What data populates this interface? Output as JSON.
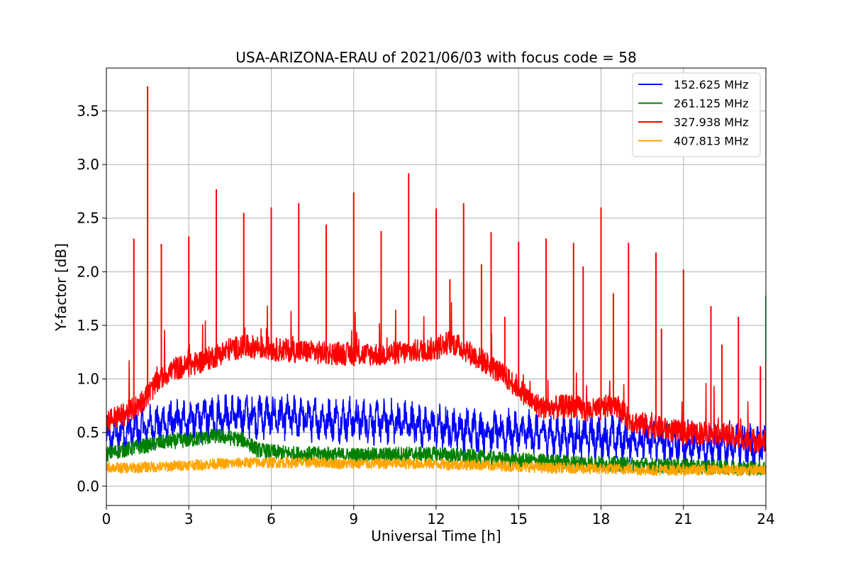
{
  "chart_data": {
    "type": "line",
    "title": "USA-ARIZONA-ERAU of 2021/06/03 with focus code = 58",
    "xlabel": "Universal Time [h]",
    "ylabel": "Y-factor [dB]",
    "xlim": [
      0,
      24
    ],
    "ylim": [
      -0.18,
      3.9
    ],
    "xticks": [
      0,
      3,
      6,
      9,
      12,
      15,
      18,
      21,
      24
    ],
    "yticks": [
      0.0,
      0.5,
      1.0,
      1.5,
      2.0,
      2.5,
      3.0,
      3.5
    ],
    "xtick_labels": [
      "0",
      "3",
      "6",
      "9",
      "12",
      "15",
      "18",
      "21",
      "24"
    ],
    "ytick_labels": [
      "0.0",
      "0.5",
      "1.0",
      "1.5",
      "2.0",
      "2.5",
      "3.0",
      "3.5"
    ],
    "grid": true,
    "legend_position": "top-right",
    "series": [
      {
        "name": "152.625 MHz",
        "color": "#0000ff",
        "x": [
          0,
          0.5,
          1,
          1.5,
          2,
          2.5,
          3,
          3.5,
          4,
          4.5,
          5,
          5.5,
          6,
          6.5,
          7,
          7.5,
          8,
          8.5,
          9,
          9.5,
          10,
          10.5,
          11,
          11.5,
          12,
          12.5,
          13,
          13.5,
          14,
          14.5,
          15,
          15.5,
          16,
          16.5,
          17,
          17.5,
          18,
          18.5,
          19,
          19.5,
          20,
          20.5,
          21,
          21.5,
          22,
          22.5,
          23,
          23.5,
          24
        ],
        "y": [
          0.45,
          0.5,
          0.52,
          0.55,
          0.58,
          0.6,
          0.62,
          0.63,
          0.65,
          0.65,
          0.66,
          0.66,
          0.65,
          0.64,
          0.64,
          0.63,
          0.62,
          0.62,
          0.62,
          0.61,
          0.6,
          0.6,
          0.58,
          0.57,
          0.55,
          0.54,
          0.53,
          0.52,
          0.51,
          0.5,
          0.5,
          0.49,
          0.48,
          0.47,
          0.46,
          0.46,
          0.45,
          0.45,
          0.44,
          0.43,
          0.42,
          0.41,
          0.4,
          0.39,
          0.39,
          0.38,
          0.38,
          0.37,
          0.37
        ],
        "spikes": []
      },
      {
        "name": "261.125 MHz",
        "color": "#008000",
        "x": [
          0,
          0.5,
          1,
          1.5,
          2,
          2.5,
          3,
          3.5,
          4,
          4.5,
          5,
          5.5,
          6,
          6.5,
          7,
          7.5,
          8,
          8.5,
          9,
          9.5,
          10,
          10.5,
          11,
          11.5,
          12,
          12.5,
          13,
          13.5,
          14,
          14.5,
          15,
          15.5,
          16,
          16.5,
          17,
          17.5,
          18,
          18.5,
          19,
          19.5,
          20,
          20.5,
          21,
          21.5,
          22,
          22.5,
          23,
          23.5,
          24
        ],
        "y": [
          0.3,
          0.33,
          0.36,
          0.38,
          0.41,
          0.42,
          0.43,
          0.45,
          0.47,
          0.45,
          0.43,
          0.34,
          0.32,
          0.31,
          0.3,
          0.3,
          0.3,
          0.29,
          0.29,
          0.29,
          0.29,
          0.3,
          0.3,
          0.3,
          0.3,
          0.29,
          0.28,
          0.27,
          0.26,
          0.25,
          0.24,
          0.24,
          0.23,
          0.23,
          0.22,
          0.22,
          0.21,
          0.21,
          0.2,
          0.2,
          0.19,
          0.19,
          0.19,
          0.18,
          0.18,
          0.18,
          0.17,
          0.17,
          0.17
        ],
        "spikes": []
      },
      {
        "name": "327.938 MHz",
        "color": "#ff0000",
        "x": [
          0,
          0.5,
          1,
          1.5,
          2,
          2.5,
          3,
          3.5,
          4,
          4.5,
          5,
          5.5,
          6,
          6.5,
          7,
          7.5,
          8,
          8.5,
          9,
          9.5,
          10,
          10.5,
          11,
          11.5,
          12,
          12.5,
          13,
          13.5,
          14,
          14.5,
          15,
          15.5,
          16,
          16.5,
          17,
          17.5,
          18,
          18.5,
          19,
          19.5,
          20,
          20.5,
          21,
          21.5,
          22,
          22.5,
          23,
          23.5,
          24
        ],
        "y": [
          0.62,
          0.65,
          0.72,
          0.85,
          1.02,
          1.1,
          1.12,
          1.17,
          1.22,
          1.28,
          1.3,
          1.3,
          1.28,
          1.27,
          1.26,
          1.25,
          1.24,
          1.24,
          1.23,
          1.23,
          1.23,
          1.24,
          1.25,
          1.27,
          1.28,
          1.35,
          1.28,
          1.2,
          1.12,
          1.02,
          0.92,
          0.78,
          0.72,
          0.74,
          0.75,
          0.7,
          0.72,
          0.78,
          0.62,
          0.58,
          0.55,
          0.52,
          0.5,
          0.5,
          0.5,
          0.48,
          0.45,
          0.43,
          0.42
        ],
        "spikes": [
          [
            1.0,
            2.31
          ],
          [
            1.5,
            3.73
          ],
          [
            2.0,
            2.26
          ],
          [
            3.0,
            2.33
          ],
          [
            4.0,
            2.77
          ],
          [
            5.0,
            2.55
          ],
          [
            6.0,
            2.6
          ],
          [
            7.0,
            2.64
          ],
          [
            8.0,
            2.44
          ],
          [
            9.0,
            2.74
          ],
          [
            10.0,
            2.38
          ],
          [
            11.0,
            2.92
          ],
          [
            12.0,
            2.59
          ],
          [
            12.5,
            1.93
          ],
          [
            13.0,
            2.64
          ],
          [
            13.65,
            2.07
          ],
          [
            14.0,
            2.37
          ],
          [
            14.5,
            1.58
          ],
          [
            15.0,
            2.28
          ],
          [
            16.0,
            2.31
          ],
          [
            17.0,
            2.27
          ],
          [
            17.35,
            2.05
          ],
          [
            18.0,
            2.6
          ],
          [
            18.45,
            1.8
          ],
          [
            19.0,
            2.27
          ],
          [
            20.0,
            2.18
          ],
          [
            20.2,
            1.47
          ],
          [
            21.0,
            2.02
          ],
          [
            22.0,
            1.68
          ],
          [
            22.4,
            1.32
          ],
          [
            23.0,
            1.58
          ],
          [
            23.8,
            1.12
          ],
          [
            24.0,
            1.78
          ]
        ]
      },
      {
        "name": "407.813 MHz",
        "color": "#ffa500",
        "x": [
          0,
          0.5,
          1,
          1.5,
          2,
          2.5,
          3,
          3.5,
          4,
          4.5,
          5,
          5.5,
          6,
          6.5,
          7,
          7.5,
          8,
          8.5,
          9,
          9.5,
          10,
          10.5,
          11,
          11.5,
          12,
          12.5,
          13,
          13.5,
          14,
          14.5,
          15,
          15.5,
          16,
          16.5,
          17,
          17.5,
          18,
          18.5,
          19,
          19.5,
          20,
          20.5,
          21,
          21.5,
          22,
          22.5,
          23,
          23.5,
          24
        ],
        "y": [
          0.18,
          0.17,
          0.17,
          0.18,
          0.18,
          0.19,
          0.2,
          0.2,
          0.21,
          0.21,
          0.22,
          0.22,
          0.22,
          0.22,
          0.22,
          0.22,
          0.22,
          0.21,
          0.21,
          0.21,
          0.21,
          0.21,
          0.21,
          0.21,
          0.21,
          0.2,
          0.2,
          0.2,
          0.19,
          0.19,
          0.18,
          0.18,
          0.17,
          0.17,
          0.17,
          0.16,
          0.16,
          0.16,
          0.16,
          0.15,
          0.15,
          0.15,
          0.15,
          0.15,
          0.15,
          0.15,
          0.15,
          0.15,
          0.15
        ],
        "spikes": []
      }
    ]
  }
}
